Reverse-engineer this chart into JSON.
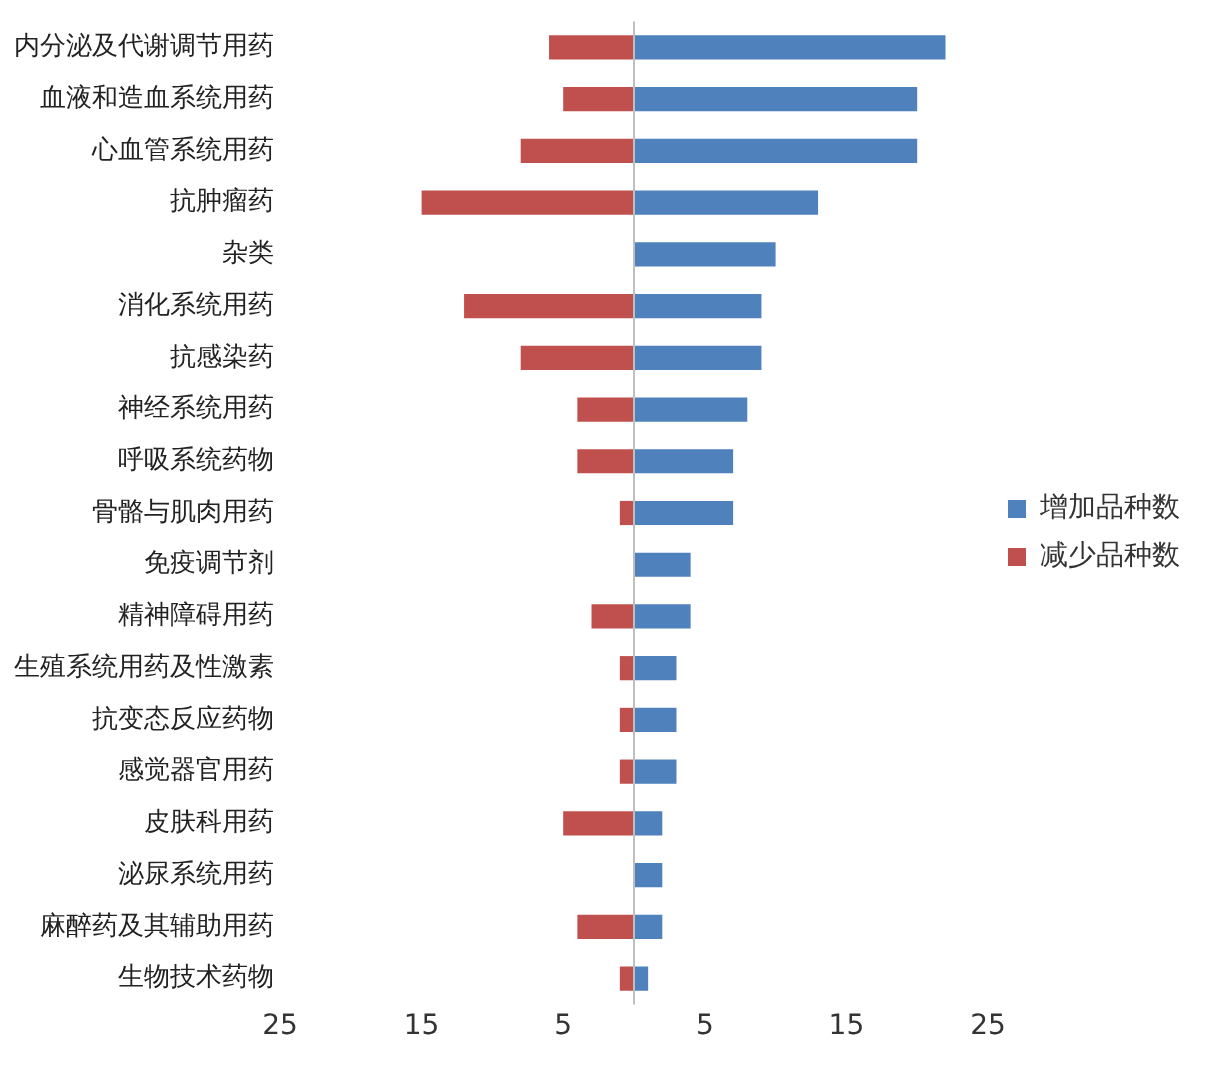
{
  "chart_data": {
    "type": "bar",
    "orientation": "horizontal",
    "stacked": true,
    "legend": "right",
    "grid": false,
    "categories": [
      "内分泌及代谢调节用药",
      "血液和造血系统用药",
      "心血管系统用药",
      "抗肿瘤药",
      "杂类",
      "消化系统用药",
      "抗感染药",
      "神经系统用药",
      "呼吸系统药物",
      "骨骼与肌肉用药",
      "免疫调节剂",
      "精神障碍用药",
      "生殖系统用药及性激素",
      "抗变态反应药物",
      "感觉器官用药",
      "皮肤科用药",
      "泌尿系统用药",
      "麻醉药及其辅助用药",
      "生物技术药物"
    ],
    "series": [
      {
        "name": "增加品种数",
        "color": "#4f81bd",
        "values": [
          22,
          20,
          20,
          13,
          10,
          9,
          9,
          8,
          7,
          7,
          4,
          4,
          3,
          3,
          3,
          2,
          2,
          2,
          1
        ]
      },
      {
        "name": "减少品种数",
        "color": "#c0504d",
        "values": [
          -6,
          -5,
          -8,
          -15,
          null,
          -12,
          -8,
          -4,
          -4,
          -1,
          null,
          -3,
          -1,
          -1,
          -1,
          -5,
          null,
          -4,
          -1
        ]
      }
    ],
    "xlim": [
      -25,
      25
    ],
    "xticks": [
      {
        "value": -25,
        "label": "25"
      },
      {
        "value": -15,
        "label": "15"
      },
      {
        "value": -5,
        "label": "5"
      },
      5,
      15,
      25
    ]
  }
}
